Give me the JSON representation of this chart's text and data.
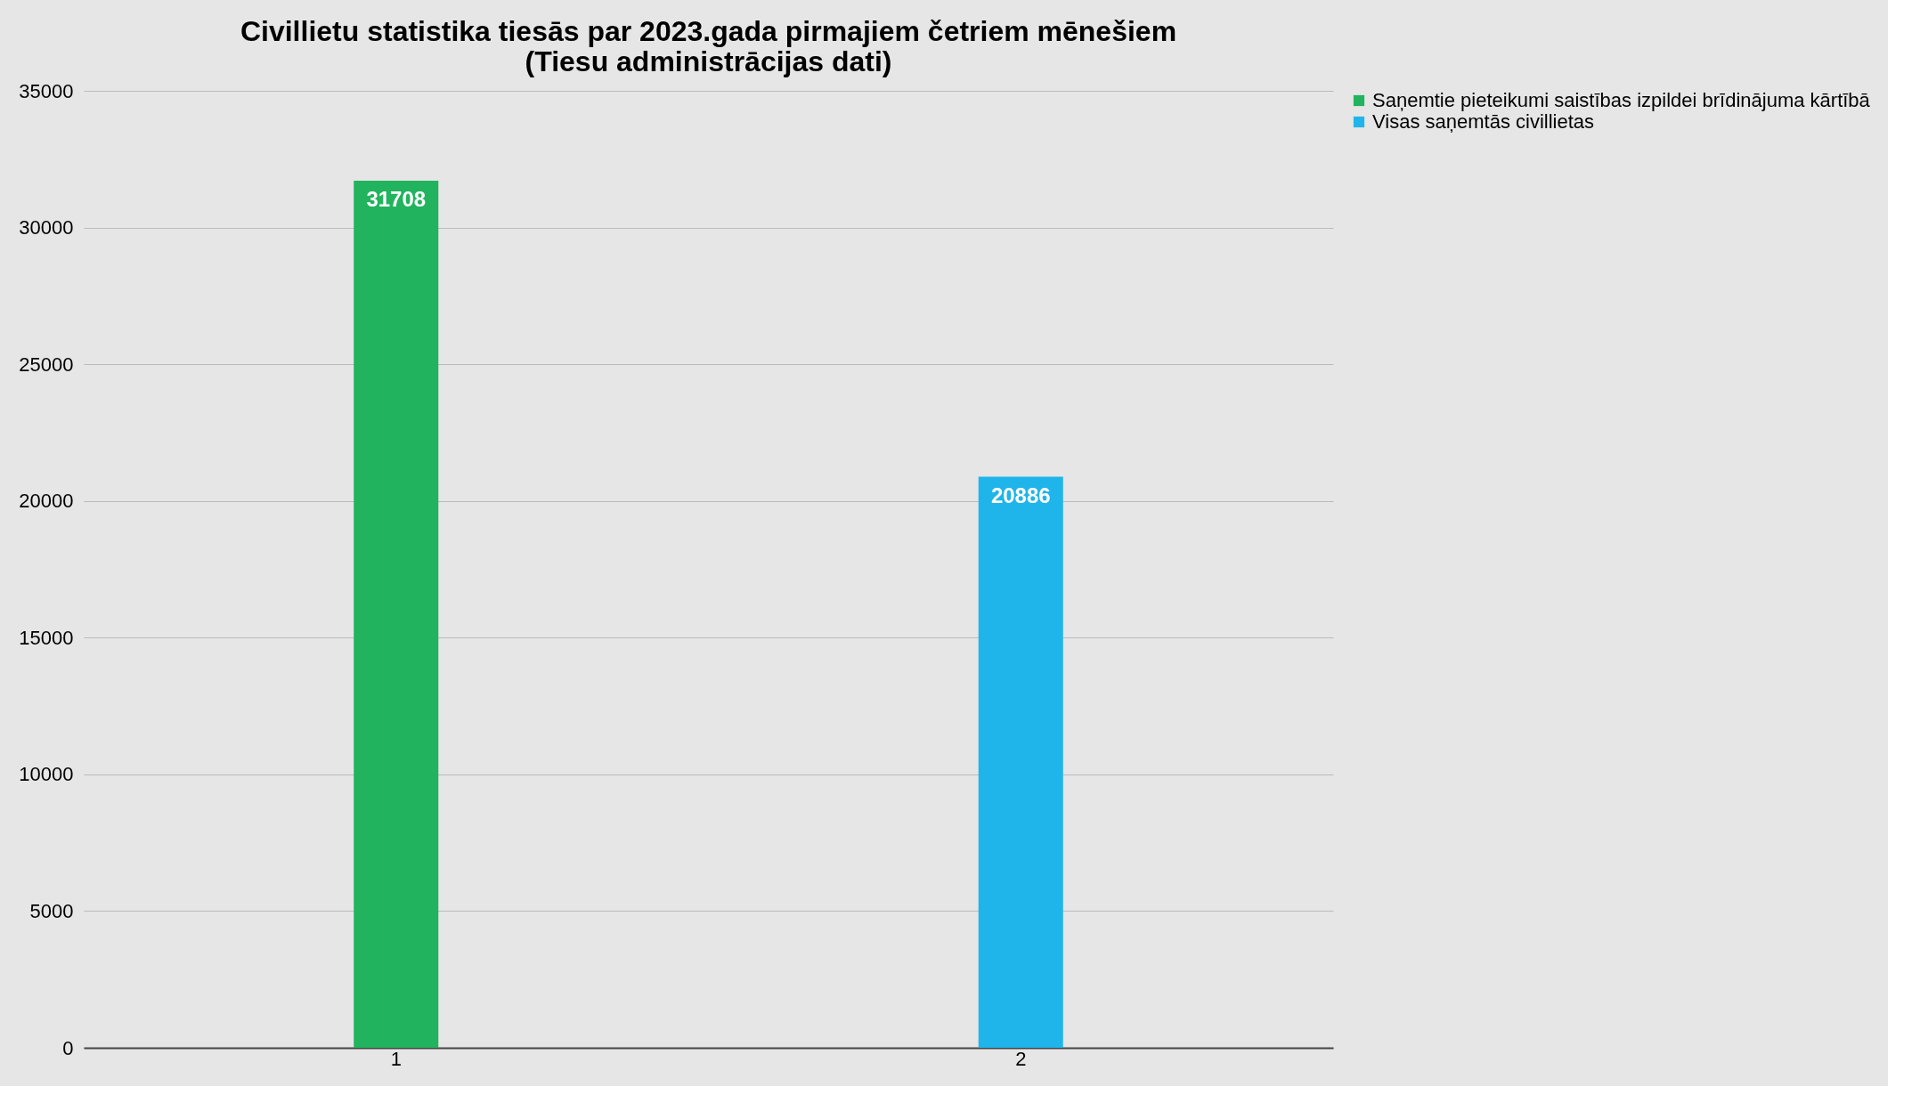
{
  "chart_data": {
    "type": "bar",
    "title": "Civillietu statistika tiesās par 2023.gada pirmajiem četriem mēnešiem\n(Tiesu administrācijas dati)",
    "categories": [
      "1",
      "2"
    ],
    "series": [
      {
        "name": "Saņemtie pieteikumi saistības izpildei brīdinājuma kārtībā",
        "color": "#21b35d",
        "values": [
          31708,
          null
        ]
      },
      {
        "name": "Visas saņemtās civillietas",
        "color": "#1fb5ea",
        "values": [
          null,
          20886
        ]
      }
    ],
    "ylim": [
      0,
      35000
    ],
    "yticks": [
      0,
      5000,
      10000,
      15000,
      20000,
      25000,
      30000,
      35000
    ],
    "grid": "y",
    "legend": "right",
    "data_labels": true
  }
}
